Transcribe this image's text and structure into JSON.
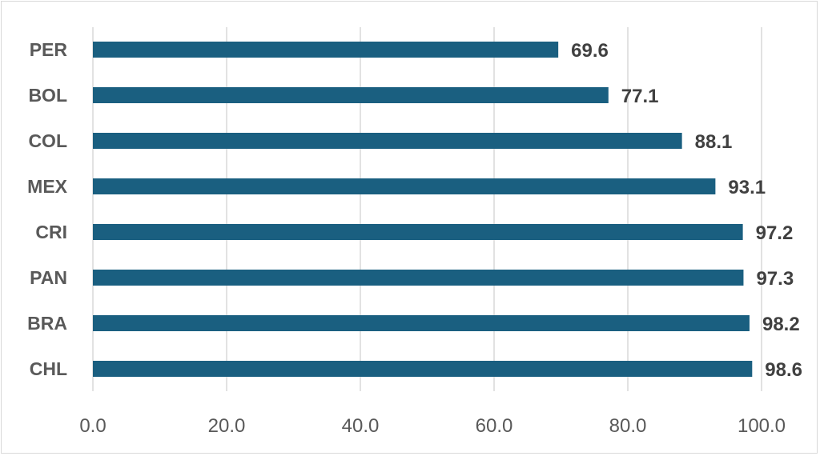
{
  "chart_data": {
    "type": "bar",
    "orientation": "horizontal",
    "categories": [
      "PER",
      "BOL",
      "COL",
      "MEX",
      "CRI",
      "PAN",
      "BRA",
      "CHL"
    ],
    "values": [
      69.6,
      77.1,
      88.1,
      93.1,
      97.2,
      97.3,
      98.2,
      98.6
    ],
    "value_labels": [
      "69.6",
      "77.1",
      "88.1",
      "93.1",
      "97.2",
      "97.3",
      "98.2",
      "98.6"
    ],
    "xlim": [
      0,
      100
    ],
    "x_ticks": [
      "0.0",
      "20.0",
      "40.0",
      "60.0",
      "80.0",
      "100.0"
    ],
    "grid": "vertical",
    "title": "",
    "xlabel": "",
    "ylabel": "",
    "bar_color": "#1a5f80"
  }
}
